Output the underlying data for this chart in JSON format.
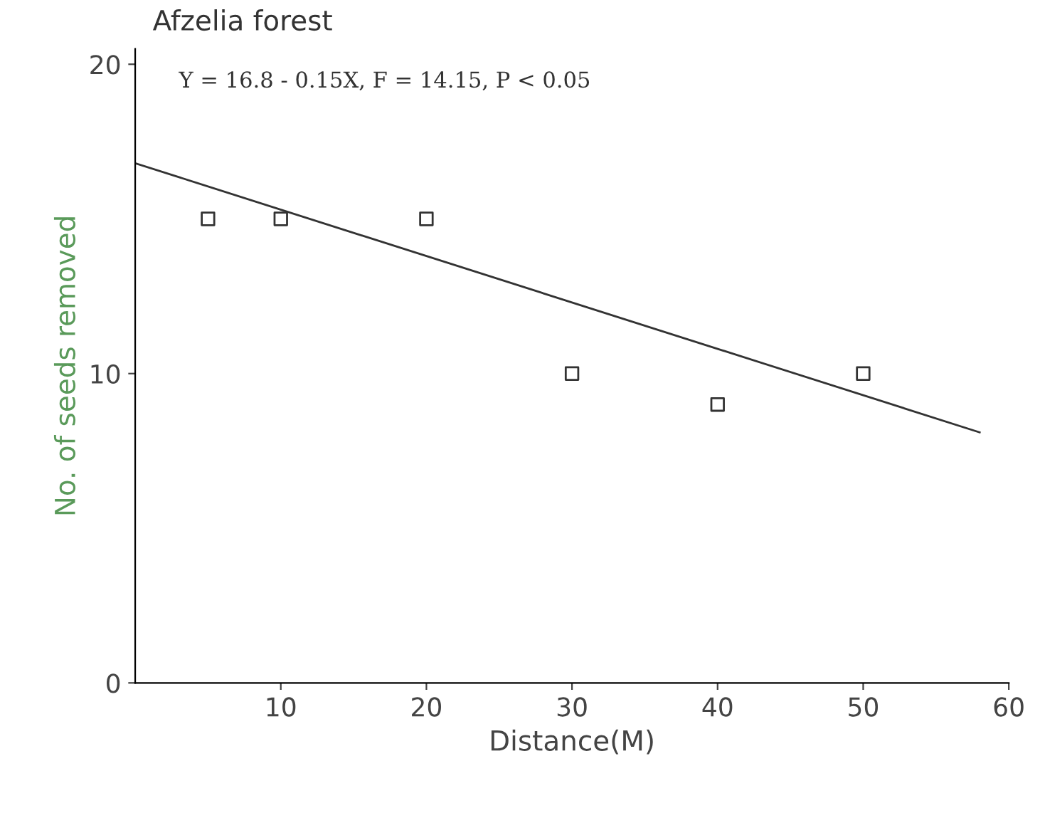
{
  "chart_data": {
    "type": "scatter",
    "title": "Afzelia forest",
    "xlabel": "Distance(M)",
    "ylabel": "No. of seeds removed",
    "annotations": [
      "Y = 16.8 - 0.15X, F = 14.15, P < 0.05"
    ],
    "series": [
      {
        "x": [
          5,
          10,
          20,
          30,
          40,
          50
        ],
        "values": [
          15,
          15,
          15,
          10,
          9,
          10
        ],
        "color": "#333333",
        "marker": "square"
      },
      {
        "type": "line",
        "x": [
          0,
          58
        ],
        "values": [
          16.8,
          8.1
        ],
        "color": "#333333",
        "marker": "none",
        "line_style": "solid"
      }
    ],
    "xlim": [
      0,
      60
    ],
    "ylim": [
      0,
      20.5
    ],
    "xticks": [
      10,
      20,
      30,
      40,
      50,
      60
    ],
    "yticks": [
      0,
      10,
      20
    ],
    "grid": false,
    "legend": false
  }
}
